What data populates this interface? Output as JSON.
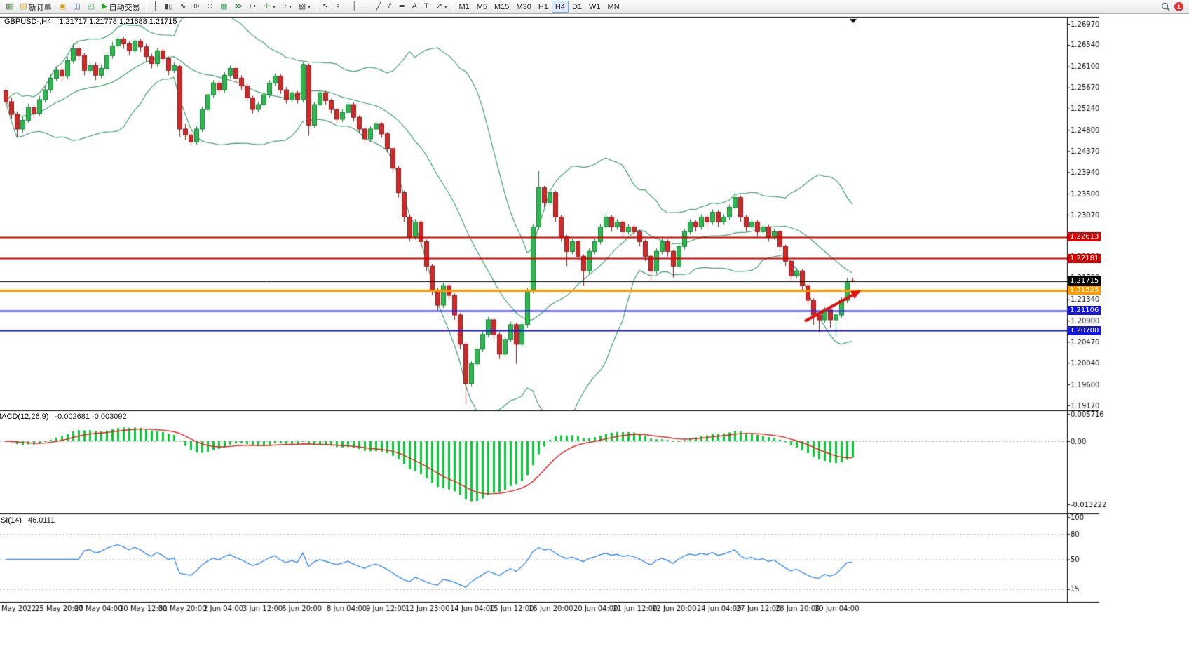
{
  "window": {
    "badge_count": "1"
  },
  "toolbar": {
    "groups": [
      [
        {
          "name": "new-chart-button",
          "glyph": "▦",
          "color": "#4f7f4f"
        },
        {
          "name": "new-order-button",
          "glyph": "▤",
          "color": "#c8a02a",
          "label": "新订单"
        },
        {
          "name": "charts-stack-button",
          "glyph": "▣",
          "color": "#c8a02a"
        },
        {
          "name": "market-watch-button",
          "glyph": "◫",
          "color": "#3a6fc4"
        },
        {
          "name": "navigator-button",
          "glyph": "◰",
          "color": "#3a9d5c"
        },
        {
          "name": "autotrading-button",
          "glyph": "▶",
          "color": "#1fa51f",
          "label": "自动交易"
        }
      ],
      [
        {
          "name": "bar-chart-button",
          "glyph": "║"
        },
        {
          "name": "candlestick-chart-button",
          "glyph": "▮▯"
        },
        {
          "name": "line-chart-button",
          "glyph": "∿"
        },
        {
          "name": "zoom-in-button",
          "glyph": "⊕"
        },
        {
          "name": "zoom-out-button",
          "glyph": "⊖"
        },
        {
          "name": "tile-windows-button",
          "glyph": "▦",
          "color": "#3a9d5c"
        },
        {
          "name": "auto-scroll-button",
          "glyph": "≫",
          "color": "#2a7a4a"
        },
        {
          "name": "chart-shift-button",
          "glyph": "↦"
        },
        {
          "name": "indicators-button",
          "glyph": "＋",
          "color": "#1fa51f",
          "caret": true
        },
        {
          "name": "periods-button",
          "glyph": "◔",
          "caret": true
        },
        {
          "name": "templates-button",
          "glyph": "▧",
          "caret": true
        }
      ],
      [
        {
          "name": "cursor-button",
          "glyph": "↖"
        },
        {
          "name": "crosshair-button",
          "glyph": "⌖"
        }
      ],
      [
        {
          "name": "vertical-line-button",
          "glyph": "│"
        },
        {
          "name": "horizontal-line-button",
          "glyph": "─"
        },
        {
          "name": "trendline-button",
          "glyph": "╱"
        },
        {
          "name": "channel-button",
          "glyph": "⫽"
        },
        {
          "name": "fibonacci-button",
          "glyph": "≣"
        },
        {
          "name": "text-button",
          "glyph": "A"
        },
        {
          "name": "label-button",
          "glyph": "T"
        },
        {
          "name": "shapes-button",
          "glyph": "↗",
          "caret": true
        }
      ],
      [
        {
          "name": "timeframe-m1-button",
          "label": "M1"
        },
        {
          "name": "timeframe-m5-button",
          "label": "M5"
        },
        {
          "name": "timeframe-m15-button",
          "label": "M15"
        },
        {
          "name": "timeframe-m30-button",
          "label": "M30"
        },
        {
          "name": "timeframe-h1-button",
          "label": "H1"
        },
        {
          "name": "timeframe-h4-button",
          "label": "H4",
          "active": true
        },
        {
          "name": "timeframe-d1-button",
          "label": "D1"
        },
        {
          "name": "timeframe-w1-button",
          "label": "W1"
        },
        {
          "name": "timeframe-mn-button",
          "label": "MN"
        }
      ]
    ]
  },
  "chart": {
    "symbol_period": "GBPUSD-,H4",
    "ohlc_text": "1.21717 1.21778 1.21688 1.21715",
    "macd_name": "MACD(12,26,9)",
    "macd_values": "-0.002681 -0.003092",
    "rsi_name": "RSI(14)",
    "rsi_value": "46.0111"
  },
  "chart_data": {
    "type": "candlestick",
    "symbol": "GBPUSD-",
    "timeframe": "H4",
    "price_axis": {
      "max": 1.2697,
      "min": 1.1917,
      "ticks": [
        1.2697,
        1.2654,
        1.261,
        1.2567,
        1.2524,
        1.248,
        1.2437,
        1.2394,
        1.235,
        1.2307,
        1.2264,
        1.2221,
        1.2178,
        1.2134,
        1.209,
        1.2047,
        1.2004,
        1.196,
        1.1917
      ]
    },
    "macd_axis": {
      "labels": [
        {
          "text": "0.005716",
          "v": 0.005716
        },
        {
          "text": "0.00",
          "v": 0
        },
        {
          "text": "-0.013222",
          "v": -0.013222
        }
      ]
    },
    "rsi_axis": {
      "labels": [
        {
          "text": "100",
          "v": 100
        },
        {
          "text": "80",
          "v": 80
        },
        {
          "text": "50",
          "v": 50
        },
        {
          "text": "15",
          "v": 15
        }
      ],
      "levels": [
        80,
        50,
        15
      ]
    },
    "indicators": {
      "bollinger": {
        "period": 20,
        "deviation": 2
      },
      "macd": {
        "fast": 12,
        "slow": 26,
        "signal": 9
      },
      "rsi": {
        "period": 14
      }
    },
    "hlines": [
      {
        "name": "resistance-line-upper",
        "price": 1.22613,
        "color": "#dd0000",
        "width": 2
      },
      {
        "name": "resistance-line-lower",
        "price": 1.22181,
        "color": "#dd0000",
        "width": 2
      },
      {
        "name": "current-price-line",
        "price": 1.21715,
        "color": "#000000",
        "width": 1
      },
      {
        "name": "alert-line-orange",
        "price": 1.21525,
        "color": "#ff9900",
        "width": 3
      },
      {
        "name": "support-line-upper",
        "price": 1.21106,
        "color": "#1414dd",
        "width": 2
      },
      {
        "name": "support-line-lower",
        "price": 1.207,
        "color": "#1414dd",
        "width": 2
      }
    ],
    "arrow": {
      "from_i": 142.5,
      "from_price": 1.2089,
      "to_i": 152.5,
      "to_price": 1.2152,
      "color": "#e01010"
    },
    "time_labels": [
      {
        "label": "May 2022",
        "i": 0
      },
      {
        "label": "25 May 20:00",
        "i": 6
      },
      {
        "label": "27 May 04:00",
        "i": 13
      },
      {
        "label": "30 May 12:00",
        "i": 21
      },
      {
        "label": "31 May 20:00",
        "i": 28
      },
      {
        "label": "2 Jun 04:00",
        "i": 36
      },
      {
        "label": "3 Jun 12:00",
        "i": 43
      },
      {
        "label": "6 Jun 20:00",
        "i": 50
      },
      {
        "label": "8 Jun 04:00",
        "i": 58
      },
      {
        "label": "9 Jun 12:00",
        "i": 65
      },
      {
        "label": "12 Jun 23:00",
        "i": 72
      },
      {
        "label": "14 Jun 04:00",
        "i": 80
      },
      {
        "label": "15 Jun 12:00",
        "i": 87
      },
      {
        "label": "16 Jun 20:00",
        "i": 94
      },
      {
        "label": "20 Jun 04:00",
        "i": 102
      },
      {
        "label": "21 Jun 12:00",
        "i": 109
      },
      {
        "label": "22 Jun 20:00",
        "i": 116
      },
      {
        "label": "24 Jun 04:00",
        "i": 124
      },
      {
        "label": "27 Jun 12:00",
        "i": 131
      },
      {
        "label": "28 Jun 20:00",
        "i": 138
      },
      {
        "label": "30 Jun 04:00",
        "i": 145
      }
    ],
    "colors": {
      "bull": "#2fb84f",
      "bull_border": "#17813a",
      "bear": "#cc2b2b",
      "bear_border": "#8f1d1d",
      "bands": "#46a274",
      "macd_hist": "#00cc33",
      "macd_signal": "#e02020",
      "rsi": "#3f8cf0",
      "levels": "#b0b0b0",
      "axis_text": "#000000"
    },
    "candles": [
      [
        1.256,
        1.2568,
        1.253,
        1.2538
      ],
      [
        1.2538,
        1.2546,
        1.2502,
        1.2512
      ],
      [
        1.2512,
        1.2518,
        1.2466,
        1.2482
      ],
      [
        1.2482,
        1.2508,
        1.2474,
        1.25
      ],
      [
        1.25,
        1.2534,
        1.2494,
        1.2526
      ],
      [
        1.2526,
        1.2532,
        1.2504,
        1.2514
      ],
      [
        1.2514,
        1.255,
        1.2508,
        1.2542
      ],
      [
        1.2542,
        1.257,
        1.2536,
        1.2562
      ],
      [
        1.2562,
        1.2594,
        1.2556,
        1.2586
      ],
      [
        1.2586,
        1.261,
        1.258,
        1.2602
      ],
      [
        1.2602,
        1.2608,
        1.2578,
        1.259
      ],
      [
        1.259,
        1.263,
        1.2584,
        1.2622
      ],
      [
        1.2622,
        1.2656,
        1.2616,
        1.2646
      ],
      [
        1.2646,
        1.2652,
        1.2622,
        1.2632
      ],
      [
        1.2632,
        1.2638,
        1.2592,
        1.2602
      ],
      [
        1.2602,
        1.262,
        1.2596,
        1.2612
      ],
      [
        1.2612,
        1.2618,
        1.2582,
        1.2592
      ],
      [
        1.2592,
        1.2614,
        1.2586,
        1.2606
      ],
      [
        1.2606,
        1.264,
        1.26,
        1.2632
      ],
      [
        1.2632,
        1.266,
        1.2626,
        1.2652
      ],
      [
        1.2652,
        1.2672,
        1.2646,
        1.2666
      ],
      [
        1.2666,
        1.267,
        1.2646,
        1.2656
      ],
      [
        1.2656,
        1.2662,
        1.2632,
        1.2642
      ],
      [
        1.2642,
        1.2668,
        1.2636,
        1.2662
      ],
      [
        1.2662,
        1.2666,
        1.264,
        1.265
      ],
      [
        1.265,
        1.2656,
        1.262,
        1.263
      ],
      [
        1.263,
        1.2636,
        1.2606,
        1.2616
      ],
      [
        1.2616,
        1.2648,
        1.261,
        1.2642
      ],
      [
        1.2642,
        1.2646,
        1.2616,
        1.2626
      ],
      [
        1.2626,
        1.263,
        1.2592,
        1.2602
      ],
      [
        1.2602,
        1.2618,
        1.2596,
        1.2612
      ],
      [
        1.261,
        1.2614,
        1.2466,
        1.2482
      ],
      [
        1.2482,
        1.2492,
        1.246,
        1.247
      ],
      [
        1.247,
        1.2478,
        1.2448,
        1.2456
      ],
      [
        1.2456,
        1.2488,
        1.245,
        1.2482
      ],
      [
        1.2482,
        1.2528,
        1.2476,
        1.2522
      ],
      [
        1.2522,
        1.2558,
        1.2516,
        1.2552
      ],
      [
        1.2552,
        1.2582,
        1.2546,
        1.2576
      ],
      [
        1.2576,
        1.258,
        1.2554,
        1.2562
      ],
      [
        1.2562,
        1.2598,
        1.2556,
        1.2592
      ],
      [
        1.2592,
        1.2612,
        1.2586,
        1.2606
      ],
      [
        1.2606,
        1.261,
        1.2578,
        1.2586
      ],
      [
        1.2586,
        1.2592,
        1.2562,
        1.257
      ],
      [
        1.257,
        1.2576,
        1.2538,
        1.2546
      ],
      [
        1.2546,
        1.255,
        1.2514,
        1.2522
      ],
      [
        1.2522,
        1.2538,
        1.2516,
        1.2532
      ],
      [
        1.2532,
        1.2558,
        1.2526,
        1.2552
      ],
      [
        1.2552,
        1.2582,
        1.2546,
        1.2576
      ],
      [
        1.2576,
        1.2596,
        1.257,
        1.259
      ],
      [
        1.259,
        1.2594,
        1.2554,
        1.2562
      ],
      [
        1.2562,
        1.2568,
        1.2534,
        1.2542
      ],
      [
        1.2542,
        1.2562,
        1.2536,
        1.2556
      ],
      [
        1.2556,
        1.256,
        1.2534,
        1.2542
      ],
      [
        1.2542,
        1.2618,
        1.2536,
        1.2614
      ],
      [
        1.2612,
        1.2616,
        1.2468,
        1.249
      ],
      [
        1.249,
        1.2538,
        1.2484,
        1.2532
      ],
      [
        1.2532,
        1.2562,
        1.2526,
        1.2556
      ],
      [
        1.2556,
        1.256,
        1.2532,
        1.254
      ],
      [
        1.254,
        1.2544,
        1.2514,
        1.2522
      ],
      [
        1.2522,
        1.2526,
        1.2494,
        1.2502
      ],
      [
        1.2502,
        1.2522,
        1.2496,
        1.2516
      ],
      [
        1.2516,
        1.2538,
        1.251,
        1.2532
      ],
      [
        1.2532,
        1.2536,
        1.2498,
        1.2506
      ],
      [
        1.2506,
        1.251,
        1.2474,
        1.2482
      ],
      [
        1.2482,
        1.2486,
        1.2454,
        1.2462
      ],
      [
        1.2462,
        1.2488,
        1.2456,
        1.2482
      ],
      [
        1.2482,
        1.2498,
        1.2476,
        1.2492
      ],
      [
        1.2492,
        1.2496,
        1.2464,
        1.2472
      ],
      [
        1.2472,
        1.2476,
        1.2434,
        1.2442
      ],
      [
        1.2442,
        1.2446,
        1.2392,
        1.2402
      ],
      [
        1.2402,
        1.2406,
        1.2342,
        1.2352
      ],
      [
        1.2352,
        1.2356,
        1.2292,
        1.2302
      ],
      [
        1.2302,
        1.2308,
        1.2252,
        1.2262
      ],
      [
        1.2262,
        1.2298,
        1.2256,
        1.2292
      ],
      [
        1.2292,
        1.2296,
        1.2242,
        1.2252
      ],
      [
        1.2252,
        1.2256,
        1.2192,
        1.2202
      ],
      [
        1.2202,
        1.2206,
        1.2142,
        1.2152
      ],
      [
        1.2152,
        1.2158,
        1.2112,
        1.2122
      ],
      [
        1.2122,
        1.2168,
        1.2116,
        1.2162
      ],
      [
        1.2162,
        1.2166,
        1.2132,
        1.2142
      ],
      [
        1.2142,
        1.2146,
        1.2092,
        1.2102
      ],
      [
        1.2102,
        1.2106,
        1.2032,
        1.2042
      ],
      [
        1.2042,
        1.2046,
        1.1918,
        1.1962
      ],
      [
        1.1962,
        1.2008,
        1.1956,
        1.2002
      ],
      [
        1.2002,
        1.2038,
        1.1996,
        1.2032
      ],
      [
        1.2032,
        1.2068,
        1.2026,
        1.2062
      ],
      [
        1.2062,
        1.2098,
        1.2056,
        1.2092
      ],
      [
        1.2092,
        1.2096,
        1.2052,
        1.2062
      ],
      [
        1.2062,
        1.2066,
        1.2012,
        1.2022
      ],
      [
        1.2022,
        1.2058,
        1.2016,
        1.2052
      ],
      [
        1.2052,
        1.2088,
        1.2046,
        1.2082
      ],
      [
        1.2082,
        1.2086,
        1.2002,
        1.2042
      ],
      [
        1.2042,
        1.2088,
        1.2036,
        1.2082
      ],
      [
        1.2082,
        1.2158,
        1.2076,
        1.2152
      ],
      [
        1.2152,
        1.2288,
        1.2146,
        1.2282
      ],
      [
        1.2282,
        1.2396,
        1.2276,
        1.2362
      ],
      [
        1.2362,
        1.2366,
        1.2322,
        1.2332
      ],
      [
        1.2332,
        1.2358,
        1.2326,
        1.2352
      ],
      [
        1.2352,
        1.2356,
        1.2292,
        1.2302
      ],
      [
        1.2302,
        1.2306,
        1.2252,
        1.2262
      ],
      [
        1.2262,
        1.2266,
        1.2202,
        1.2232
      ],
      [
        1.2232,
        1.2258,
        1.2226,
        1.2252
      ],
      [
        1.2252,
        1.2256,
        1.2212,
        1.2222
      ],
      [
        1.2222,
        1.2226,
        1.2162,
        1.2192
      ],
      [
        1.2192,
        1.2238,
        1.2186,
        1.2232
      ],
      [
        1.2232,
        1.2258,
        1.2226,
        1.2252
      ],
      [
        1.2252,
        1.2288,
        1.2246,
        1.2282
      ],
      [
        1.2282,
        1.2312,
        1.2276,
        1.2302
      ],
      [
        1.2302,
        1.2306,
        1.2272,
        1.2282
      ],
      [
        1.2282,
        1.2298,
        1.2276,
        1.2292
      ],
      [
        1.2292,
        1.2296,
        1.2262,
        1.2272
      ],
      [
        1.2272,
        1.2288,
        1.2266,
        1.2282
      ],
      [
        1.2282,
        1.2286,
        1.2262,
        1.2272
      ],
      [
        1.2272,
        1.2276,
        1.2242,
        1.2252
      ],
      [
        1.2252,
        1.2256,
        1.2212,
        1.2222
      ],
      [
        1.2222,
        1.2226,
        1.2172,
        1.2192
      ],
      [
        1.2192,
        1.2238,
        1.2186,
        1.2232
      ],
      [
        1.2232,
        1.2258,
        1.2226,
        1.2252
      ],
      [
        1.2252,
        1.2256,
        1.2222,
        1.2232
      ],
      [
        1.2232,
        1.2236,
        1.2178,
        1.2202
      ],
      [
        1.2202,
        1.2248,
        1.2196,
        1.2242
      ],
      [
        1.2242,
        1.2278,
        1.2236,
        1.2272
      ],
      [
        1.2272,
        1.2298,
        1.2266,
        1.2292
      ],
      [
        1.2292,
        1.2296,
        1.2272,
        1.2282
      ],
      [
        1.2282,
        1.2308,
        1.2276,
        1.2302
      ],
      [
        1.2302,
        1.2306,
        1.2282,
        1.2292
      ],
      [
        1.2292,
        1.2318,
        1.2286,
        1.2312
      ],
      [
        1.2312,
        1.2316,
        1.2282,
        1.2292
      ],
      [
        1.2292,
        1.2308,
        1.2286,
        1.2302
      ],
      [
        1.2302,
        1.2328,
        1.2296,
        1.2322
      ],
      [
        1.2322,
        1.2352,
        1.2316,
        1.2342
      ],
      [
        1.2342,
        1.2346,
        1.2292,
        1.2302
      ],
      [
        1.2302,
        1.2306,
        1.2272,
        1.2282
      ],
      [
        1.2282,
        1.2298,
        1.2276,
        1.2292
      ],
      [
        1.2292,
        1.2296,
        1.2262,
        1.2272
      ],
      [
        1.2272,
        1.2288,
        1.2266,
        1.2282
      ],
      [
        1.2282,
        1.2286,
        1.2252,
        1.2262
      ],
      [
        1.2262,
        1.2278,
        1.2256,
        1.2272
      ],
      [
        1.2272,
        1.2276,
        1.2232,
        1.2242
      ],
      [
        1.2242,
        1.2246,
        1.2202,
        1.2212
      ],
      [
        1.2212,
        1.2216,
        1.2172,
        1.2182
      ],
      [
        1.2182,
        1.2198,
        1.2176,
        1.2192
      ],
      [
        1.2192,
        1.2196,
        1.2152,
        1.2162
      ],
      [
        1.2162,
        1.2166,
        1.2122,
        1.2132
      ],
      [
        1.2132,
        1.2136,
        1.2082,
        1.2102
      ],
      [
        1.2102,
        1.2106,
        1.2066,
        1.2092
      ],
      [
        1.2092,
        1.2118,
        1.2086,
        1.2112
      ],
      [
        1.2112,
        1.2116,
        1.2076,
        1.2092
      ],
      [
        1.2092,
        1.2108,
        1.2058,
        1.2102
      ],
      [
        1.2102,
        1.2138,
        1.2096,
        1.2132
      ],
      [
        1.2132,
        1.2178,
        1.2126,
        1.2168
      ],
      [
        1.21717,
        1.21778,
        1.21688,
        1.21715
      ]
    ]
  }
}
